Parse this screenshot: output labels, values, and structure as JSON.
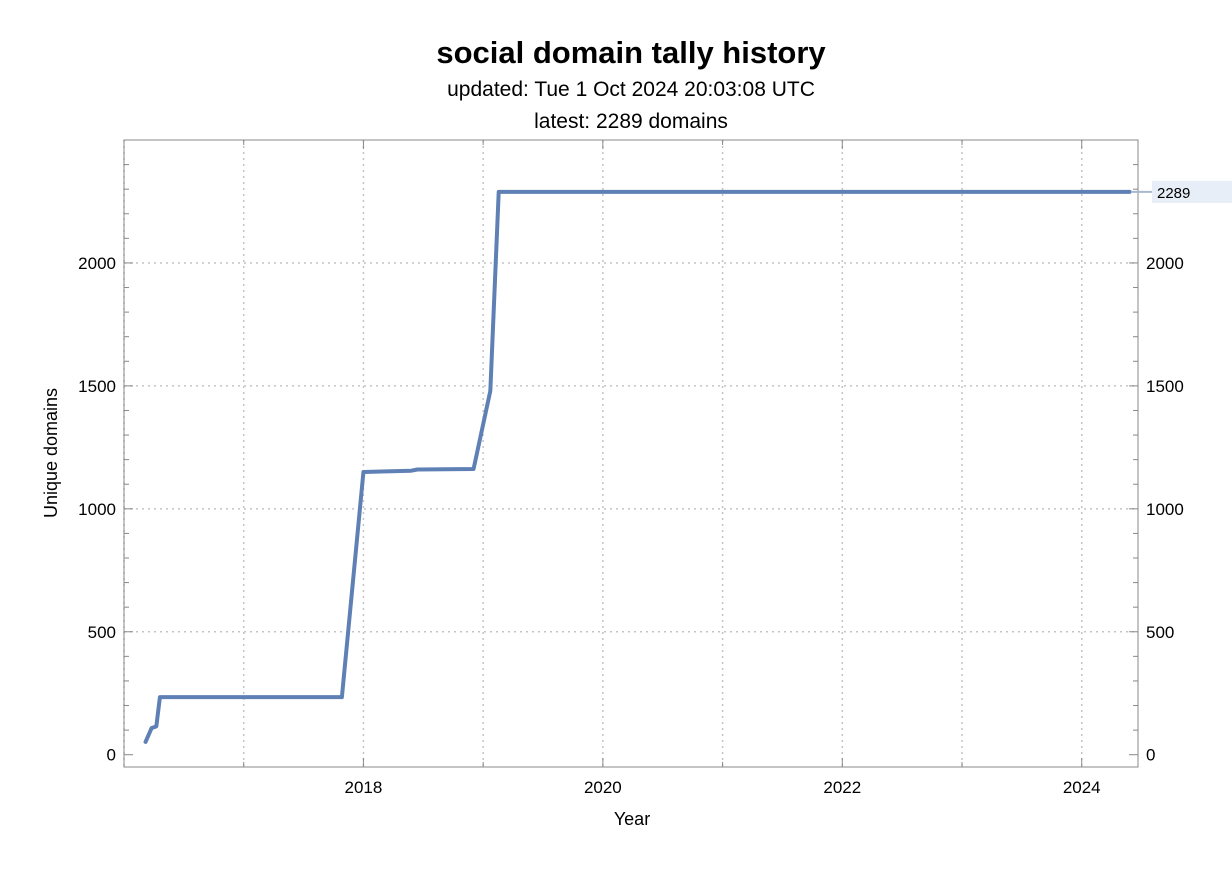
{
  "chart_data": {
    "type": "line",
    "title": "social domain tally history",
    "subtitle_lines": [
      "updated: Tue 1 Oct 2024 20:03:08 UTC",
      "latest: 2289 domains"
    ],
    "xlabel": "Year",
    "ylabel": "Unique domains",
    "xlim": [
      2016.0,
      2024.47
    ],
    "ylim": [
      -50,
      2500
    ],
    "x_ticks": [
      2018,
      2020,
      2022,
      2024
    ],
    "y_ticks": [
      0,
      500,
      1000,
      1500,
      2000
    ],
    "grid": true,
    "line_color": "#5f80b5",
    "series": [
      {
        "x": [
          2016.18,
          2016.23,
          2016.27,
          2016.3,
          2017.1,
          2017.82,
          2018.0,
          2018.4,
          2018.45,
          2018.92,
          2019.06,
          2019.13,
          2024.4
        ],
        "values": [
          52,
          108,
          115,
          234,
          234,
          234,
          1150,
          1155,
          1160,
          1162,
          1480,
          2289,
          2289
        ]
      }
    ],
    "last_value_label": "2289"
  }
}
